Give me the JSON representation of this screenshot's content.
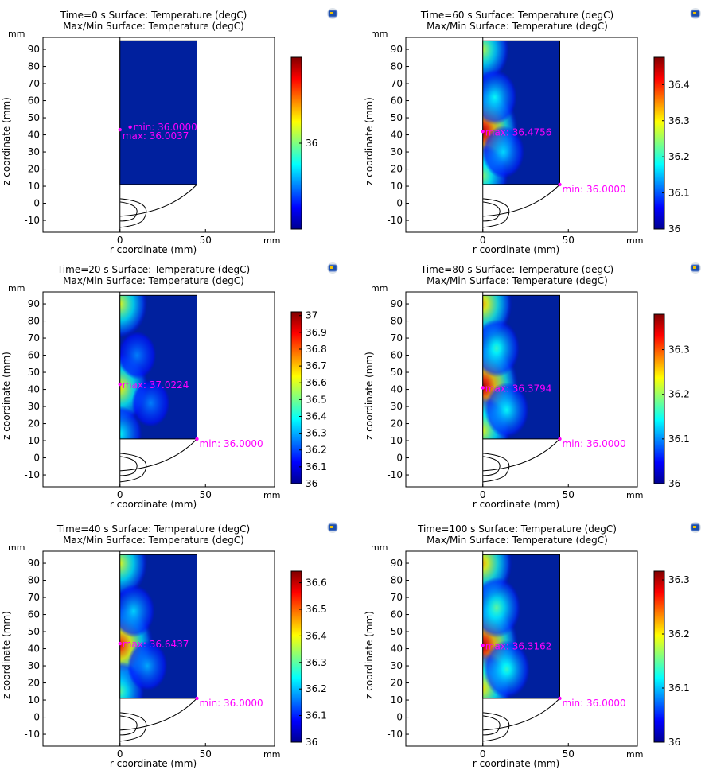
{
  "figure": {
    "colormap": [
      "#00008f",
      "#0000ff",
      "#0080ff",
      "#00ffff",
      "#80ff80",
      "#ffff00",
      "#ff8000",
      "#ff0000",
      "#800000"
    ],
    "annotation_color": "#ff00ff",
    "background_color": "#00209e",
    "icon": "comsol-logo-icon"
  },
  "chart_data": [
    {
      "type": "heatmap",
      "title": "Time=0 s   Surface: Temperature (degC)",
      "subtitle": "Max/Min Surface: Temperature (degC)",
      "xlabel": "r coordinate (mm)",
      "ylabel": "z coordinate (mm)",
      "x_unit": "mm",
      "y_unit": "mm",
      "xlim": [
        -45,
        88
      ],
      "ylim": [
        -17,
        97
      ],
      "x_ticks": [
        0,
        50
      ],
      "y_ticks": [
        -10,
        0,
        10,
        20,
        30,
        40,
        50,
        60,
        70,
        80,
        90
      ],
      "domain": {
        "r": [
          0,
          45
        ],
        "z": [
          11,
          95
        ]
      },
      "max": {
        "label": "max: 36.0037",
        "value": 36.0037,
        "r": 0,
        "z": 43
      },
      "min": {
        "label": "min: 36.0000",
        "value": 36.0,
        "r": 6,
        "z": 44.5
      },
      "colorbar": {
        "range": [
          35.996,
          36.004
        ],
        "ticks": [
          36
        ]
      },
      "hot_spots": []
    },
    {
      "type": "heatmap",
      "title": "Time=60 s   Surface: Temperature (degC)",
      "subtitle": "Max/Min Surface: Temperature (degC)",
      "xlabel": "r coordinate (mm)",
      "ylabel": "z coordinate (mm)",
      "x_unit": "mm",
      "y_unit": "mm",
      "xlim": [
        -45,
        88
      ],
      "ylim": [
        -17,
        97
      ],
      "x_ticks": [
        0,
        50
      ],
      "y_ticks": [
        -10,
        0,
        10,
        20,
        30,
        40,
        50,
        60,
        70,
        80,
        90
      ],
      "domain": {
        "r": [
          0,
          45
        ],
        "z": [
          11,
          95
        ]
      },
      "max": {
        "label": "max: 36.4756",
        "value": 36.4756,
        "r": 0,
        "z": 42
      },
      "min": {
        "label": "min: 36.0000",
        "value": 36.0,
        "r": 45,
        "z": 11
      },
      "colorbar": {
        "range": [
          36.0,
          36.4756
        ],
        "ticks": [
          36,
          36.1,
          36.2,
          36.3,
          36.4
        ]
      },
      "hot_spots": [
        {
          "r": 0,
          "z": 42,
          "value": 0.95
        },
        {
          "r": 0,
          "z": 90,
          "value": 0.5
        },
        {
          "r": 0,
          "z": 16,
          "value": 0.45
        },
        {
          "r": 7,
          "z": 62,
          "value": 0.3
        },
        {
          "r": 12,
          "z": 30,
          "value": 0.25
        }
      ]
    },
    {
      "type": "heatmap",
      "title": "Time=20 s   Surface: Temperature (degC)",
      "subtitle": "Max/Min Surface: Temperature (degC)",
      "xlabel": "r coordinate (mm)",
      "ylabel": "z coordinate (mm)",
      "x_unit": "mm",
      "y_unit": "mm",
      "xlim": [
        -45,
        88
      ],
      "ylim": [
        -17,
        97
      ],
      "x_ticks": [
        0,
        50
      ],
      "y_ticks": [
        -10,
        0,
        10,
        20,
        30,
        40,
        50,
        60,
        70,
        80,
        90
      ],
      "domain": {
        "r": [
          0,
          45
        ],
        "z": [
          11,
          95
        ]
      },
      "max": {
        "label": "max: 37.0224",
        "value": 37.0224,
        "r": 0,
        "z": 43
      },
      "min": {
        "label": "min: 36.0000",
        "value": 36.0,
        "r": 45,
        "z": 11
      },
      "colorbar": {
        "range": [
          36.0,
          37.0224
        ],
        "ticks": [
          36,
          36.1,
          36.2,
          36.3,
          36.4,
          36.5,
          36.6,
          36.7,
          36.8,
          36.9,
          37
        ]
      },
      "hot_spots": [
        {
          "r": 0,
          "z": 41,
          "value": 0.6
        },
        {
          "r": 0,
          "z": 90,
          "value": 0.55
        },
        {
          "r": 0,
          "z": 14,
          "value": 0.3
        },
        {
          "r": 10,
          "z": 60,
          "value": 0.15
        },
        {
          "r": 18,
          "z": 32,
          "value": 0.15
        }
      ]
    },
    {
      "type": "heatmap",
      "title": "Time=80 s   Surface: Temperature (degC)",
      "subtitle": "Max/Min Surface: Temperature (degC)",
      "xlabel": "r coordinate (mm)",
      "ylabel": "z coordinate (mm)",
      "x_unit": "mm",
      "y_unit": "mm",
      "xlim": [
        -45,
        88
      ],
      "ylim": [
        -17,
        97
      ],
      "x_ticks": [
        0,
        50
      ],
      "y_ticks": [
        -10,
        0,
        10,
        20,
        30,
        40,
        50,
        60,
        70,
        80,
        90
      ],
      "domain": {
        "r": [
          0,
          45
        ],
        "z": [
          11,
          95
        ]
      },
      "max": {
        "label": "max: 36.3794",
        "value": 36.3794,
        "r": 0,
        "z": 41
      },
      "min": {
        "label": "min: 36.0000",
        "value": 36.0,
        "r": 45,
        "z": 11
      },
      "colorbar": {
        "range": [
          36.0,
          36.3794
        ],
        "ticks": [
          36,
          36.1,
          36.2,
          36.3
        ]
      },
      "hot_spots": [
        {
          "r": 0,
          "z": 42,
          "value": 0.95
        },
        {
          "r": 0,
          "z": 90,
          "value": 0.65
        },
        {
          "r": 0,
          "z": 16,
          "value": 0.55
        },
        {
          "r": 8,
          "z": 64,
          "value": 0.35
        },
        {
          "r": 14,
          "z": 28,
          "value": 0.3
        }
      ]
    },
    {
      "type": "heatmap",
      "title": "Time=40 s   Surface: Temperature (degC)",
      "subtitle": "Max/Min Surface: Temperature (degC)",
      "xlabel": "r coordinate (mm)",
      "ylabel": "z coordinate (mm)",
      "x_unit": "mm",
      "y_unit": "mm",
      "xlim": [
        -45,
        88
      ],
      "ylim": [
        -17,
        97
      ],
      "x_ticks": [
        0,
        50
      ],
      "y_ticks": [
        -10,
        0,
        10,
        20,
        30,
        40,
        50,
        60,
        70,
        80,
        90
      ],
      "domain": {
        "r": [
          0,
          45
        ],
        "z": [
          11,
          95
        ]
      },
      "max": {
        "label": "max: 36.6437",
        "value": 36.6437,
        "r": 0,
        "z": 43
      },
      "min": {
        "label": "min: 36.0000",
        "value": 36.0,
        "r": 45,
        "z": 11
      },
      "colorbar": {
        "range": [
          36.0,
          36.6437
        ],
        "ticks": [
          36,
          36.1,
          36.2,
          36.3,
          36.4,
          36.5,
          36.6
        ]
      },
      "hot_spots": [
        {
          "r": 0,
          "z": 42,
          "value": 0.85
        },
        {
          "r": 0,
          "z": 90,
          "value": 0.55
        },
        {
          "r": 0,
          "z": 15,
          "value": 0.4
        },
        {
          "r": 8,
          "z": 62,
          "value": 0.25
        },
        {
          "r": 16,
          "z": 30,
          "value": 0.2
        }
      ]
    },
    {
      "type": "heatmap",
      "title": "Time=100 s   Surface: Temperature (degC)",
      "subtitle": "Max/Min Surface: Temperature (degC)",
      "xlabel": "r coordinate (mm)",
      "ylabel": "z coordinate (mm)",
      "x_unit": "mm",
      "y_unit": "mm",
      "xlim": [
        -45,
        88
      ],
      "ylim": [
        -17,
        97
      ],
      "x_ticks": [
        0,
        50
      ],
      "y_ticks": [
        -10,
        0,
        10,
        20,
        30,
        40,
        50,
        60,
        70,
        80,
        90
      ],
      "domain": {
        "r": [
          0,
          45
        ],
        "z": [
          11,
          95
        ]
      },
      "max": {
        "label": "max: 36.3162",
        "value": 36.3162,
        "r": 0,
        "z": 42
      },
      "min": {
        "label": "min: 36.0000",
        "value": 36.0,
        "r": 45,
        "z": 11
      },
      "colorbar": {
        "range": [
          36.0,
          36.3162
        ],
        "ticks": [
          36,
          36.1,
          36.2,
          36.3
        ]
      },
      "hot_spots": [
        {
          "r": 0,
          "z": 42,
          "value": 0.95
        },
        {
          "r": 0,
          "z": 90,
          "value": 0.65
        },
        {
          "r": 0,
          "z": 17,
          "value": 0.6
        },
        {
          "r": 8,
          "z": 64,
          "value": 0.4
        },
        {
          "r": 14,
          "z": 28,
          "value": 0.35
        }
      ]
    }
  ]
}
